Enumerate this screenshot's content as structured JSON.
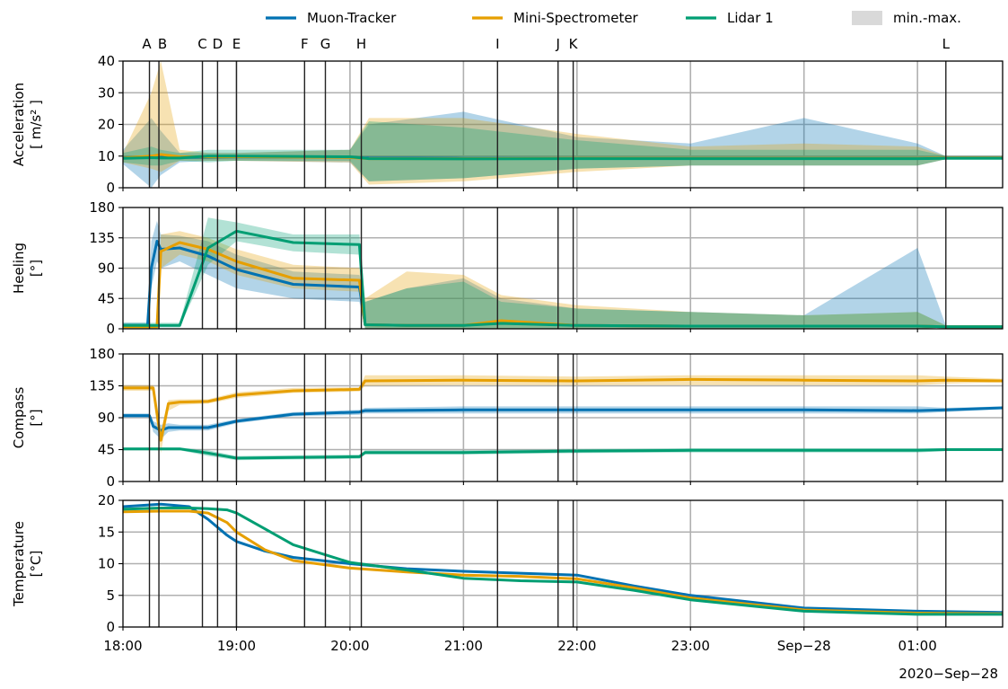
{
  "colors": {
    "muon": "#0072B2",
    "mini": "#E69F00",
    "lidar": "#009E73",
    "band": "#d9d9d9"
  },
  "legend": [
    {
      "label": "Muon-Tracker",
      "color": "#0072B2",
      "kind": "line"
    },
    {
      "label": "Mini-Spectrometer",
      "color": "#E69F00",
      "kind": "line"
    },
    {
      "label": "Lidar 1",
      "color": "#009E73",
      "kind": "line"
    },
    {
      "label": "min.-max.",
      "color": "#d9d9d9",
      "kind": "patch"
    }
  ],
  "x_axis": {
    "tick_labels": [
      "18:00",
      "19:00",
      "20:00",
      "21:00",
      "22:00",
      "23:00",
      "Sep−28",
      "01:00"
    ],
    "date_label": "2020−Sep−28"
  },
  "events": [
    {
      "label": "A",
      "time": "18:14"
    },
    {
      "label": "B",
      "time": "18:19"
    },
    {
      "label": "C",
      "time": "18:42"
    },
    {
      "label": "D",
      "time": "18:50"
    },
    {
      "label": "E",
      "time": "19:00"
    },
    {
      "label": "F",
      "time": "19:36"
    },
    {
      "label": "G",
      "time": "19:47"
    },
    {
      "label": "H",
      "time": "20:06"
    },
    {
      "label": "I",
      "time": "21:18"
    },
    {
      "label": "J",
      "time": "21:50"
    },
    {
      "label": "K",
      "time": "21:58"
    },
    {
      "label": "L",
      "time": "01:15"
    }
  ],
  "chart_data": [
    {
      "type": "line",
      "panel": "acceleration",
      "ylabel_lines": [
        "Acceleration",
        "[ m/s² ]"
      ],
      "ylim": [
        0,
        40
      ],
      "yticks": [
        0,
        10,
        20,
        30,
        40
      ],
      "x": [
        "18:00",
        "18:15",
        "18:20",
        "18:30",
        "18:45",
        "19:00",
        "20:00",
        "20:10",
        "21:00",
        "22:00",
        "23:00",
        "00:00",
        "01:00",
        "01:15",
        "01:45"
      ],
      "series": [
        {
          "name": "Muon-Tracker",
          "values": [
            9.5,
            9.5,
            9.8,
            9.6,
            9.6,
            9.7,
            9.6,
            9.4,
            9.3,
            9.3,
            9.3,
            9.3,
            9.3,
            9.4,
            9.4
          ],
          "min": [
            7.5,
            0,
            4,
            8,
            8.5,
            8.5,
            8,
            2,
            3,
            6,
            7,
            7,
            7,
            9,
            9
          ],
          "max": [
            12,
            22,
            18,
            11,
            11,
            11,
            12,
            20,
            24,
            16,
            14,
            22,
            14,
            10,
            10
          ]
        },
        {
          "name": "Mini-Spectrometer",
          "values": [
            9.4,
            10,
            10.5,
            9.8,
            9.7,
            9.8,
            9.6,
            9.2,
            9.2,
            9.3,
            9.3,
            9.3,
            9.3,
            9.4,
            9.4
          ],
          "min": [
            8,
            6,
            5,
            8.5,
            8.5,
            8.5,
            8,
            1,
            2,
            5,
            7,
            7,
            7,
            9,
            9
          ],
          "max": [
            11,
            30,
            40,
            12,
            11,
            11,
            12,
            22,
            22,
            17,
            13,
            14,
            13,
            10,
            10
          ]
        },
        {
          "name": "Lidar 1",
          "values": [
            9.3,
            9.5,
            9.4,
            9.4,
            10,
            10,
            9.8,
            9.2,
            9.1,
            9.2,
            9.2,
            9.2,
            9.2,
            9.3,
            9.3
          ],
          "min": [
            8,
            7,
            7,
            8.5,
            8,
            8.5,
            8.5,
            2,
            3,
            6,
            7,
            7,
            7,
            9,
            9
          ],
          "max": [
            11,
            13,
            12,
            11,
            12,
            12,
            12,
            21,
            19,
            15,
            12,
            12,
            12,
            10,
            10
          ]
        }
      ]
    },
    {
      "type": "line",
      "panel": "heeling",
      "ylabel_lines": [
        "Heeling",
        "[°]"
      ],
      "ylim": [
        0,
        180
      ],
      "yticks": [
        0,
        45,
        90,
        135,
        180
      ],
      "x": [
        "18:00",
        "18:13",
        "18:15",
        "18:18",
        "18:20",
        "18:30",
        "18:45",
        "19:00",
        "19:30",
        "20:05",
        "20:08",
        "20:30",
        "21:00",
        "21:20",
        "22:00",
        "23:00",
        "00:00",
        "01:00",
        "01:15",
        "01:45"
      ],
      "series": [
        {
          "name": "Muon-Tracker",
          "values": [
            5,
            5,
            90,
            130,
            118,
            120,
            108,
            88,
            66,
            62,
            6,
            5,
            5,
            10,
            5,
            4,
            4,
            4,
            3,
            3
          ],
          "min": [
            2,
            2,
            60,
            100,
            90,
            100,
            80,
            60,
            45,
            40,
            0,
            0,
            0,
            0,
            0,
            0,
            0,
            0,
            2,
            2
          ],
          "max": [
            9,
            9,
            130,
            160,
            140,
            138,
            130,
            110,
            85,
            80,
            40,
            60,
            75,
            45,
            30,
            25,
            20,
            120,
            5,
            5
          ]
        },
        {
          "name": "Mini-Spectrometer",
          "values": [
            3,
            3,
            3,
            3,
            115,
            128,
            118,
            100,
            75,
            72,
            6,
            5,
            5,
            12,
            5,
            4,
            4,
            4,
            3,
            3
          ],
          "min": [
            1,
            1,
            1,
            1,
            90,
            110,
            100,
            80,
            60,
            55,
            0,
            0,
            0,
            0,
            0,
            0,
            0,
            0,
            2,
            2
          ],
          "max": [
            6,
            6,
            6,
            6,
            140,
            145,
            135,
            118,
            95,
            90,
            45,
            85,
            80,
            50,
            35,
            25,
            20,
            25,
            5,
            5
          ]
        },
        {
          "name": "Lidar 1",
          "values": [
            5,
            5,
            5,
            5,
            5,
            5,
            120,
            145,
            128,
            125,
            6,
            5,
            5,
            8,
            5,
            4,
            4,
            4,
            3,
            3
          ],
          "min": [
            2,
            2,
            2,
            2,
            2,
            2,
            95,
            130,
            115,
            110,
            0,
            0,
            0,
            0,
            0,
            0,
            0,
            0,
            2,
            2
          ],
          "max": [
            9,
            9,
            9,
            9,
            9,
            9,
            165,
            158,
            140,
            140,
            40,
            60,
            70,
            40,
            30,
            25,
            20,
            25,
            5,
            5
          ]
        }
      ]
    },
    {
      "type": "line",
      "panel": "compass",
      "ylabel_lines": [
        "Compass",
        "[°]"
      ],
      "ylim": [
        0,
        180
      ],
      "yticks": [
        0,
        45,
        90,
        135,
        180
      ],
      "x": [
        "18:00",
        "18:14",
        "18:16",
        "18:20",
        "18:24",
        "18:30",
        "18:45",
        "19:00",
        "19:30",
        "20:05",
        "20:08",
        "21:00",
        "22:00",
        "23:00",
        "00:00",
        "01:00",
        "01:15",
        "01:45"
      ],
      "series": [
        {
          "name": "Muon-Tracker",
          "values": [
            93,
            93,
            78,
            72,
            76,
            76,
            76,
            85,
            95,
            98,
            100,
            101,
            101,
            101,
            101,
            100,
            101,
            104
          ],
          "min": [
            90,
            90,
            70,
            60,
            70,
            72,
            72,
            82,
            92,
            94,
            96,
            96,
            96,
            96,
            96,
            96,
            98,
            102
          ],
          "max": [
            96,
            96,
            85,
            80,
            82,
            80,
            80,
            88,
            98,
            101,
            104,
            106,
            106,
            106,
            106,
            106,
            104,
            106
          ]
        },
        {
          "name": "Mini-Spectrometer",
          "values": [
            132,
            132,
            132,
            58,
            110,
            112,
            113,
            122,
            128,
            130,
            142,
            143,
            142,
            144,
            143,
            142,
            143,
            142
          ],
          "min": [
            128,
            128,
            128,
            40,
            100,
            108,
            110,
            118,
            125,
            127,
            135,
            136,
            136,
            136,
            136,
            136,
            138,
            140
          ],
          "max": [
            136,
            136,
            136,
            70,
            115,
            116,
            116,
            126,
            132,
            133,
            150,
            150,
            148,
            150,
            150,
            150,
            148,
            145
          ]
        },
        {
          "name": "Lidar 1",
          "values": [
            46,
            46,
            46,
            46,
            46,
            46,
            40,
            33,
            34,
            35,
            41,
            41,
            43,
            44,
            44,
            44,
            45,
            45
          ],
          "min": [
            44,
            44,
            44,
            44,
            44,
            44,
            36,
            30,
            31,
            32,
            38,
            38,
            40,
            41,
            41,
            41,
            43,
            43
          ],
          "max": [
            48,
            48,
            48,
            48,
            48,
            48,
            44,
            36,
            37,
            38,
            44,
            44,
            46,
            47,
            47,
            47,
            47,
            47
          ]
        }
      ]
    },
    {
      "type": "line",
      "panel": "temperature",
      "ylabel_lines": [
        "Temperature",
        "[°C]"
      ],
      "ylim": [
        0,
        20
      ],
      "yticks": [
        0,
        5,
        10,
        15,
        20
      ],
      "x": [
        "18:00",
        "18:20",
        "18:35",
        "18:45",
        "18:55",
        "19:00",
        "19:15",
        "19:30",
        "20:00",
        "20:30",
        "21:00",
        "21:30",
        "22:00",
        "22:30",
        "23:00",
        "00:00",
        "01:00",
        "01:45"
      ],
      "series": [
        {
          "name": "Muon-Tracker",
          "values": [
            19,
            19.4,
            19,
            17,
            14.5,
            13.5,
            12,
            11,
            10,
            9.2,
            8.8,
            8.5,
            8.2,
            6.5,
            5,
            3,
            2.5,
            2.3
          ]
        },
        {
          "name": "Mini-Spectrometer",
          "values": [
            18.2,
            18.3,
            18.3,
            18,
            16.5,
            15,
            12.2,
            10.5,
            9.3,
            8.7,
            8.2,
            8,
            7.6,
            6.2,
            4.6,
            2.7,
            2.2,
            2.1
          ]
        },
        {
          "name": "Lidar 1",
          "values": [
            18.6,
            18.8,
            18.8,
            18.7,
            18.5,
            18,
            15.5,
            13,
            10.2,
            9,
            7.7,
            7.3,
            7.1,
            5.8,
            4.3,
            2.5,
            2,
            2
          ]
        }
      ]
    }
  ]
}
